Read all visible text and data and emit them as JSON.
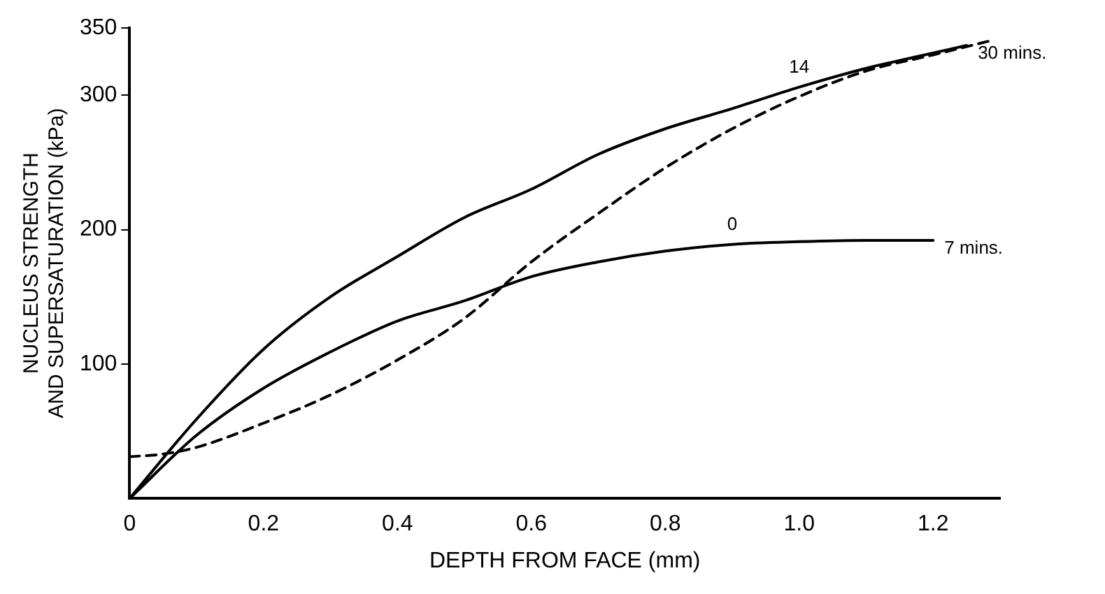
{
  "chart_data": {
    "type": "line",
    "xlabel": "DEPTH FROM FACE (mm)",
    "ylabel": "NUCLEUS STRENGTH\nAND SUPERSATURATION (kPa)",
    "xlim": [
      0,
      1.3
    ],
    "ylim": [
      0,
      350
    ],
    "xticks": [
      0,
      0.2,
      0.4,
      0.6,
      0.8,
      {
        "value": 1,
        "label": "1.0"
      },
      1.2
    ],
    "yticks": [
      100,
      200,
      300,
      350
    ],
    "grid": false,
    "legend": false,
    "marker": "none",
    "series": [
      {
        "name": "30 mins.",
        "color": "#000000",
        "line_style": "solid",
        "x": [
          0,
          0.1,
          0.2,
          0.3,
          0.4,
          0.5,
          0.6,
          0.7,
          0.8,
          0.9,
          1.0,
          1.1,
          1.17,
          1.25
        ],
        "values": [
          0,
          59,
          111,
          150,
          180,
          209,
          230,
          256,
          275,
          290,
          306,
          320,
          328,
          337
        ]
      },
      {
        "name": "7 mins.",
        "color": "#000000",
        "line_style": "solid",
        "x": [
          0,
          0.1,
          0.2,
          0.3,
          0.4,
          0.5,
          0.6,
          0.7,
          0.8,
          0.9,
          1.0,
          1.1,
          1.2
        ],
        "values": [
          0,
          47,
          82,
          109,
          132,
          147,
          165,
          176,
          184,
          189,
          191,
          192,
          192
        ]
      },
      {
        "color": "#000000",
        "line_style": "dashed",
        "x": [
          0,
          0.05,
          0.1,
          0.2,
          0.3,
          0.4,
          0.5,
          0.6,
          0.7,
          0.8,
          0.9,
          1.0,
          1.1,
          1.2,
          1.29
        ],
        "values": [
          31,
          33,
          38,
          56,
          77,
          103,
          134,
          176,
          212,
          246,
          275,
          299,
          318,
          330,
          341
        ]
      }
    ],
    "annotations": [
      "14",
      "0"
    ]
  }
}
